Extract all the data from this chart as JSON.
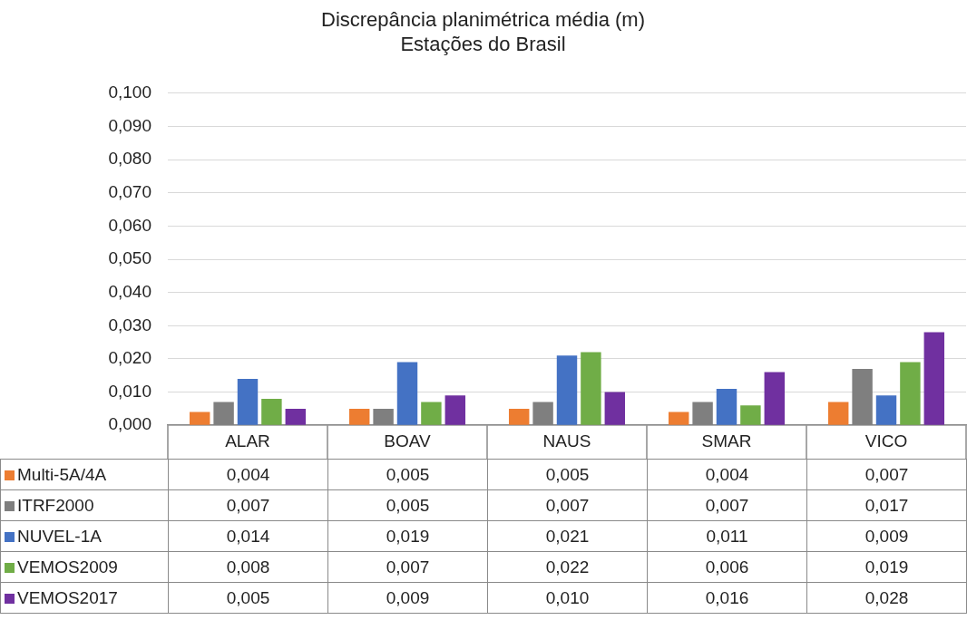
{
  "chart_data": {
    "type": "bar",
    "title": "Discrepância planimétrica média (m)",
    "subtitle": "Estações do Brasil",
    "categories": [
      "ALAR",
      "BOAV",
      "NAUS",
      "SMAR",
      "VICO"
    ],
    "series": [
      {
        "name": "Multi-5A/4A",
        "color": "#ed7d31",
        "values": [
          0.004,
          0.005,
          0.005,
          0.004,
          0.007
        ],
        "value_labels": [
          "0,004",
          "0,005",
          "0,005",
          "0,004",
          "0,007"
        ]
      },
      {
        "name": "ITRF2000",
        "color": "#7f7f7f",
        "values": [
          0.007,
          0.005,
          0.007,
          0.007,
          0.017
        ],
        "value_labels": [
          "0,007",
          "0,005",
          "0,007",
          "0,007",
          "0,017"
        ]
      },
      {
        "name": "NUVEL-1A",
        "color": "#4472c4",
        "values": [
          0.014,
          0.019,
          0.021,
          0.011,
          0.009
        ],
        "value_labels": [
          "0,014",
          "0,019",
          "0,021",
          "0,011",
          "0,009"
        ]
      },
      {
        "name": "VEMOS2009",
        "color": "#70ad47",
        "values": [
          0.008,
          0.007,
          0.022,
          0.006,
          0.019
        ],
        "value_labels": [
          "0,008",
          "0,007",
          "0,022",
          "0,006",
          "0,019"
        ]
      },
      {
        "name": "VEMOS2017",
        "color": "#7030a0",
        "values": [
          0.005,
          0.009,
          0.01,
          0.016,
          0.028
        ],
        "value_labels": [
          "0,005",
          "0,009",
          "0,010",
          "0,016",
          "0,028"
        ]
      }
    ],
    "ylim": [
      0,
      0.1
    ],
    "yticks": [
      {
        "value": 0,
        "label": "0,000"
      },
      {
        "value": 0.01,
        "label": "0,010"
      },
      {
        "value": 0.02,
        "label": "0,020"
      },
      {
        "value": 0.03,
        "label": "0,030"
      },
      {
        "value": 0.04,
        "label": "0,040"
      },
      {
        "value": 0.05,
        "label": "0,050"
      },
      {
        "value": 0.06,
        "label": "0,060"
      },
      {
        "value": 0.07,
        "label": "0,070"
      },
      {
        "value": 0.08,
        "label": "0,080"
      },
      {
        "value": 0.09,
        "label": "0,090"
      },
      {
        "value": 0.1,
        "label": "0,100"
      }
    ],
    "grid": "y",
    "legend": "bottom"
  }
}
